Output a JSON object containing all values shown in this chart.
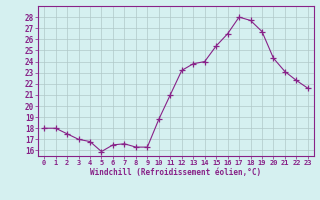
{
  "x": [
    0,
    1,
    2,
    3,
    4,
    5,
    6,
    7,
    8,
    9,
    10,
    11,
    12,
    13,
    14,
    15,
    16,
    17,
    18,
    19,
    20,
    21,
    22,
    23
  ],
  "y": [
    18.0,
    18.0,
    17.5,
    17.0,
    16.8,
    15.9,
    16.5,
    16.6,
    16.3,
    16.3,
    18.8,
    21.0,
    23.2,
    23.8,
    24.0,
    25.4,
    26.5,
    28.0,
    27.7,
    26.7,
    24.3,
    23.1,
    22.3,
    21.6
  ],
  "line_color": "#882288",
  "marker": "+",
  "marker_size": 4,
  "bg_color": "#d5f0f0",
  "grid_color": "#b0c8c8",
  "xlabel": "Windchill (Refroidissement éolien,°C)",
  "ylim": [
    15.5,
    29.0
  ],
  "yticks": [
    16,
    17,
    18,
    19,
    20,
    21,
    22,
    23,
    24,
    25,
    26,
    27,
    28
  ],
  "xticks": [
    0,
    1,
    2,
    3,
    4,
    5,
    6,
    7,
    8,
    9,
    10,
    11,
    12,
    13,
    14,
    15,
    16,
    17,
    18,
    19,
    20,
    21,
    22,
    23
  ],
  "tick_color": "#882288",
  "label_color": "#882288",
  "spine_color": "#882288"
}
